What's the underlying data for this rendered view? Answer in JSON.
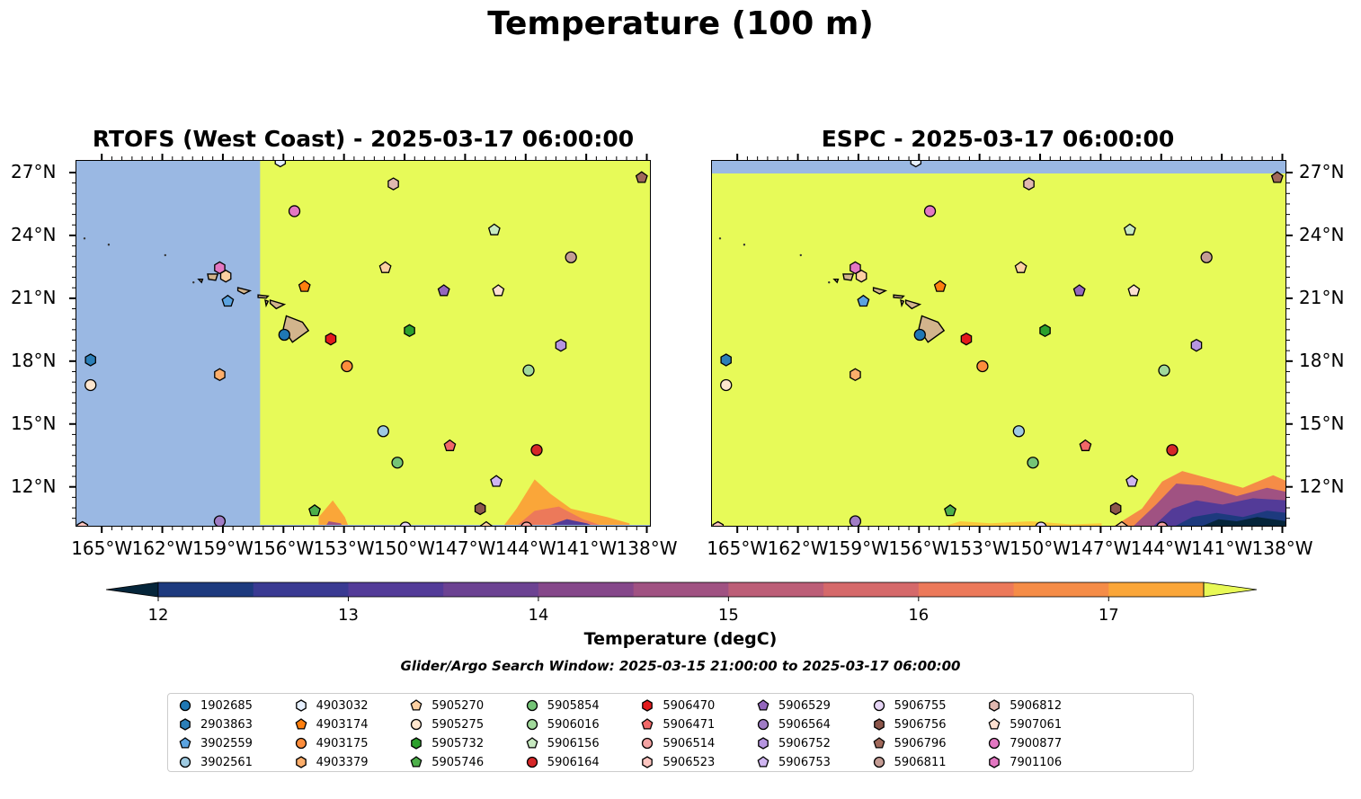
{
  "title": "Temperature (100 m)",
  "panels": [
    {
      "title": "RTOFS (West Coast) - 2025-03-17 06:00:00",
      "ytick_side": "left"
    },
    {
      "title": "ESPC - 2025-03-17 06:00:00",
      "ytick_side": "right"
    }
  ],
  "map_extent": {
    "lon_min": -166.3,
    "lon_max": -137.8,
    "lat_min": 10.1,
    "lat_max": 27.6
  },
  "lon_ticks": [
    "165°W",
    "162°W",
    "159°W",
    "156°W",
    "153°W",
    "150°W",
    "147°W",
    "144°W",
    "141°W",
    "138°W"
  ],
  "lat_ticks": [
    "27°N",
    "24°N",
    "21°N",
    "18°N",
    "15°N",
    "12°N"
  ],
  "colorbar": {
    "label": "Temperature (degC)",
    "range": [
      12,
      17.5
    ],
    "ticks": [
      "12",
      "13",
      "14",
      "15",
      "16",
      "17"
    ],
    "colors": [
      "#05253a",
      "#0e3458",
      "#1d3a7e",
      "#3a3a92",
      "#533b98",
      "#6c4292",
      "#85478a",
      "#a05282",
      "#bc5e77",
      "#d5696a",
      "#ec795a",
      "#f58c47",
      "#faa639",
      "#f9c83a",
      "#e8f956"
    ]
  },
  "colors": {
    "ocean_masked": "#9ab8e3",
    "warm_water": "#e7fa58",
    "land": "#d2b48c"
  },
  "search_window": "Glider/Argo Search Window: 2025-03-15 21:00:00 to 2025-03-17 06:00:00",
  "floats": [
    {
      "id": "1902685",
      "marker": "circle",
      "color": "#1f77b4",
      "lon": -156.0,
      "lat": 19.3
    },
    {
      "id": "2903863",
      "marker": "hexagon",
      "color": "#2c7fb8",
      "lon": -165.6,
      "lat": 18.1
    },
    {
      "id": "3902559",
      "marker": "pentagon",
      "color": "#5ba3e0",
      "lon": -158.8,
      "lat": 20.9
    },
    {
      "id": "3902561",
      "marker": "circle",
      "color": "#9ecae1",
      "lon": -151.1,
      "lat": 14.7
    },
    {
      "id": "4903032",
      "marker": "hexagon",
      "color": "#e6f0ff",
      "lon": -156.2,
      "lat": 27.6
    },
    {
      "id": "4903174",
      "marker": "pentagon",
      "color": "#ff7f0e",
      "lon": -155.0,
      "lat": 21.6
    },
    {
      "id": "4903175",
      "marker": "circle",
      "color": "#fd8d3c",
      "lon": -152.9,
      "lat": 17.8
    },
    {
      "id": "4903379",
      "marker": "hexagon",
      "color": "#fdae6b",
      "lon": -159.2,
      "lat": 17.4
    },
    {
      "id": "5905270",
      "marker": "pentagon",
      "color": "#fdd0a2",
      "lon": -146.0,
      "lat": 10.1
    },
    {
      "id": "5905275",
      "marker": "circle",
      "color": "#fee6ce",
      "lon": -165.6,
      "lat": 16.9
    },
    {
      "id": "5905732",
      "marker": "hexagon",
      "color": "#2ca02c",
      "lon": -149.8,
      "lat": 19.5
    },
    {
      "id": "5905746",
      "marker": "pentagon",
      "color": "#4daf4a",
      "lon": -154.5,
      "lat": 10.9
    },
    {
      "id": "5905854",
      "marker": "circle",
      "color": "#74c476",
      "lon": -150.4,
      "lat": 13.2
    },
    {
      "id": "5906016",
      "marker": "circle",
      "color": "#a1d99b",
      "lon": -143.9,
      "lat": 17.6
    },
    {
      "id": "5906156",
      "marker": "pentagon",
      "color": "#c7e9c0",
      "lon": -145.6,
      "lat": 24.3
    },
    {
      "id": "5906164",
      "marker": "circle",
      "color": "#d62728",
      "lon": -143.5,
      "lat": 13.8
    },
    {
      "id": "5906470",
      "marker": "hexagon",
      "color": "#e31a1c",
      "lon": -153.7,
      "lat": 19.1
    },
    {
      "id": "5906471",
      "marker": "pentagon",
      "color": "#f16868",
      "lon": -147.8,
      "lat": 14.0
    },
    {
      "id": "5906514",
      "marker": "circle",
      "color": "#f4a3a3",
      "lon": -144.0,
      "lat": 10.1
    },
    {
      "id": "5906523",
      "marker": "hexagon",
      "color": "#fcc5c0",
      "lon": -166.0,
      "lat": 10.1
    },
    {
      "id": "5906529",
      "marker": "pentagon",
      "color": "#9467bd",
      "lon": -148.1,
      "lat": 21.4
    },
    {
      "id": "5906564",
      "marker": "circle",
      "color": "#a07cc5",
      "lon": -159.2,
      "lat": 10.4
    },
    {
      "id": "5906752",
      "marker": "hexagon",
      "color": "#b695e0",
      "lon": -142.3,
      "lat": 18.8
    },
    {
      "id": "5906753",
      "marker": "pentagon",
      "color": "#cfb5f0",
      "lon": -145.5,
      "lat": 12.3
    },
    {
      "id": "5906755",
      "marker": "circle",
      "color": "#e6d5f5",
      "lon": -150.0,
      "lat": 10.1
    },
    {
      "id": "5906756",
      "marker": "hexagon",
      "color": "#8c564b",
      "lon": -146.3,
      "lat": 11.0
    },
    {
      "id": "5906796",
      "marker": "pentagon",
      "color": "#a0685a",
      "lon": -138.3,
      "lat": 26.8
    },
    {
      "id": "5906811",
      "marker": "circle",
      "color": "#c49c94",
      "lon": -141.8,
      "lat": 23.0
    },
    {
      "id": "5906812",
      "marker": "hexagon",
      "color": "#e0b8b0",
      "lon": -150.6,
      "lat": 26.5
    },
    {
      "id": "5907061",
      "marker": "pentagon",
      "color": "#fde0d0",
      "lon": -145.4,
      "lat": 21.4
    },
    {
      "id": "7900877",
      "marker": "circle",
      "color": "#e377c2",
      "lon": -155.5,
      "lat": 25.2
    },
    {
      "id": "7901106",
      "marker": "hexagon",
      "color": "#e377c2",
      "lon": -159.2,
      "lat": 22.5
    }
  ],
  "extra_markers": [
    {
      "marker": "pentagon",
      "color": "#fdd0a2",
      "lon": -151.0,
      "lat": 22.5
    },
    {
      "marker": "hexagon",
      "color": "#fdd0a2",
      "lon": -158.9,
      "lat": 22.1
    }
  ]
}
